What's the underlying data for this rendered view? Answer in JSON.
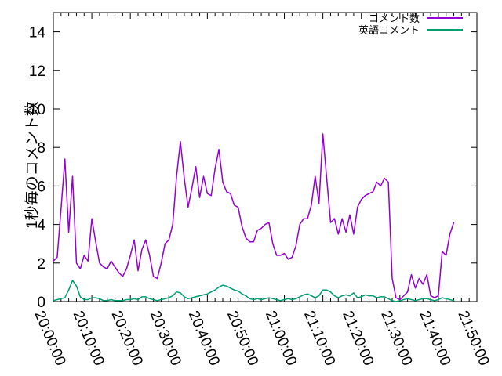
{
  "chart_data": {
    "type": "line",
    "title": "",
    "xlabel": "",
    "ylabel": "1秒毎のコメント数",
    "grid": false,
    "legend_position": "top-right-inside",
    "background": "#ffffff",
    "border_color": "#000000",
    "start_time": "20:00:00",
    "sample_interval_minutes": 1,
    "x_axis": {
      "range_minutes": [
        0,
        110
      ],
      "major_tick_minutes": 10,
      "minor_tick_minutes": 2,
      "tick_labels": [
        "20:00:00",
        "20:10:00",
        "20:20:00",
        "20:30:00",
        "20:40:00",
        "20:50:00",
        "21:00:00",
        "21:10:00",
        "21:20:00",
        "21:30:00",
        "21:40:00",
        "21:50:00"
      ]
    },
    "y_axis": {
      "range": [
        0,
        15
      ],
      "ticks": [
        0,
        2,
        4,
        6,
        8,
        10,
        12,
        14
      ]
    },
    "series": [
      {
        "name": "コメント数",
        "slug": "comments",
        "color": "#9400d3",
        "values": [
          2.1,
          2.3,
          4.8,
          7.4,
          3.6,
          6.5,
          2.0,
          1.7,
          2.4,
          2.1,
          4.3,
          3.1,
          2.0,
          1.8,
          1.7,
          2.1,
          1.8,
          1.5,
          1.3,
          1.7,
          2.4,
          3.2,
          1.6,
          2.7,
          3.2,
          2.4,
          1.3,
          1.2,
          2.0,
          3.0,
          3.2,
          4.0,
          6.5,
          8.3,
          6.4,
          4.9,
          5.9,
          7.0,
          5.4,
          6.5,
          5.6,
          5.5,
          6.9,
          7.9,
          6.2,
          5.7,
          5.6,
          5.0,
          4.9,
          3.9,
          3.3,
          3.1,
          3.1,
          3.7,
          3.8,
          4.0,
          4.1,
          3.0,
          2.4,
          2.4,
          2.5,
          2.2,
          2.3,
          2.9,
          4.0,
          4.3,
          4.3,
          5.0,
          6.5,
          5.1,
          8.7,
          6.4,
          4.1,
          4.3,
          3.5,
          4.3,
          3.6,
          4.5,
          3.5,
          4.9,
          5.3,
          5.5,
          5.6,
          5.7,
          6.2,
          6.0,
          6.4,
          6.2,
          1.2,
          0.2,
          0.1,
          0.3,
          0.5,
          1.4,
          0.7,
          1.2,
          0.9,
          1.4,
          0.3,
          0.2,
          0.3,
          2.6,
          2.4,
          3.5,
          4.1
        ]
      },
      {
        "name": "英語コメント",
        "slug": "english-comments",
        "color": "#009e73",
        "values": [
          0.05,
          0.1,
          0.15,
          0.2,
          0.6,
          1.1,
          0.8,
          0.25,
          0.1,
          0.1,
          0.2,
          0.2,
          0.15,
          0.05,
          0.05,
          0.1,
          0.05,
          0.05,
          0.05,
          0.1,
          0.1,
          0.15,
          0.1,
          0.25,
          0.25,
          0.15,
          0.1,
          0.05,
          0.1,
          0.15,
          0.2,
          0.3,
          0.5,
          0.45,
          0.25,
          0.15,
          0.2,
          0.25,
          0.3,
          0.35,
          0.4,
          0.5,
          0.6,
          0.75,
          0.85,
          0.8,
          0.7,
          0.6,
          0.55,
          0.4,
          0.3,
          0.15,
          0.1,
          0.15,
          0.1,
          0.15,
          0.2,
          0.15,
          0.1,
          0.05,
          0.1,
          0.15,
          0.1,
          0.15,
          0.25,
          0.35,
          0.4,
          0.3,
          0.2,
          0.3,
          0.6,
          0.6,
          0.5,
          0.3,
          0.2,
          0.3,
          0.35,
          0.3,
          0.45,
          0.2,
          0.25,
          0.35,
          0.3,
          0.3,
          0.2,
          0.25,
          0.25,
          0.15,
          0.05,
          0.0,
          0.05,
          0.1,
          0.15,
          0.1,
          0.05,
          0.1,
          0.15,
          0.15,
          0.1,
          0.05,
          0.1,
          0.2,
          0.15,
          0.1,
          0.05
        ]
      }
    ]
  }
}
